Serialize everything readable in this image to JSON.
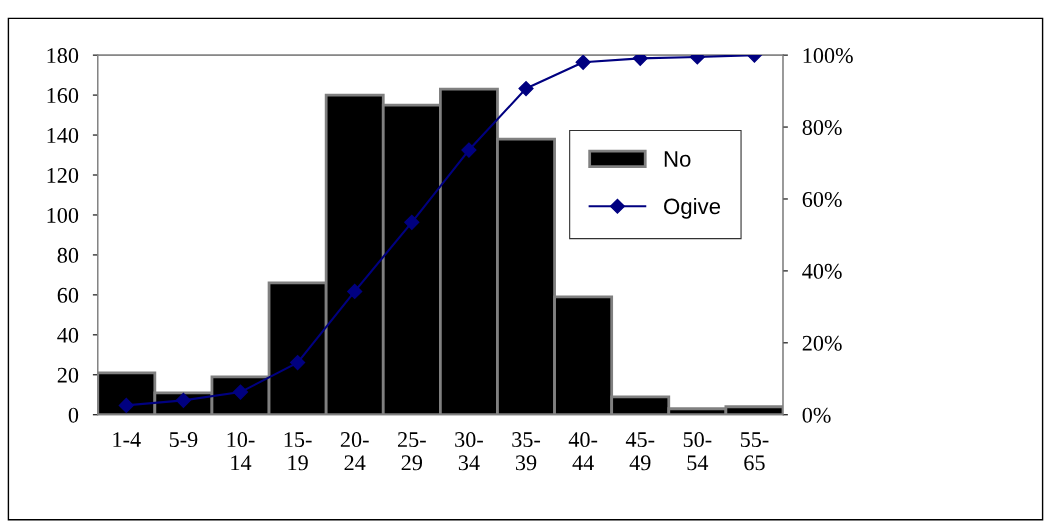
{
  "chart_data": {
    "type": "bar",
    "categories": [
      "1-4",
      "5-9",
      "10-\n14",
      "15-\n19",
      "20-\n24",
      "25-\n29",
      "30-\n34",
      "35-\n39",
      "40-\n44",
      "45-\n49",
      "50-\n54",
      "55-\n65"
    ],
    "series": [
      {
        "name": "No",
        "color": "#000000",
        "values": [
          21,
          11,
          19,
          66,
          160,
          155,
          163,
          138,
          59,
          9,
          3,
          4
        ]
      },
      {
        "name": "Ogive",
        "type": "line",
        "axis": "y2",
        "color": "#000080",
        "marker": "diamond",
        "values": [
          2.6,
          4.0,
          6.3,
          14.5,
          34.3,
          53.5,
          73.6,
          90.7,
          98.0,
          99.1,
          99.5,
          100
        ]
      }
    ],
    "ylim": [
      0,
      180
    ],
    "yticks": [
      0,
      20,
      40,
      60,
      80,
      100,
      120,
      140,
      160,
      180
    ],
    "y2lim": [
      0,
      100
    ],
    "y2ticks": [
      {
        "value": 0,
        "label": "0%"
      },
      {
        "value": 20,
        "label": "20%"
      },
      {
        "value": 40,
        "label": "40%"
      },
      {
        "value": 60,
        "label": "60%"
      },
      {
        "value": 80,
        "label": "80%"
      },
      {
        "value": 100,
        "label": "100%"
      }
    ],
    "legend": "right",
    "grid": false
  }
}
